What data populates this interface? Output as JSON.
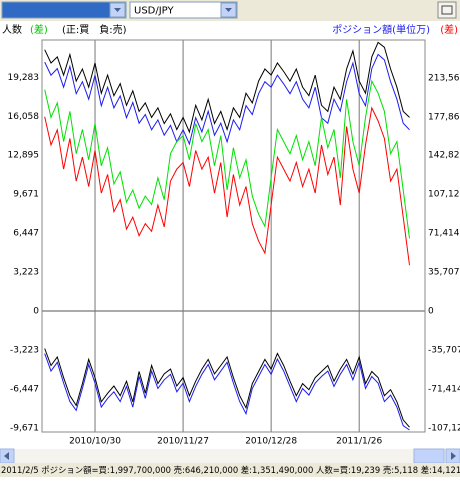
{
  "toolbar": {
    "pair": "USD/JPY"
  },
  "chart_data": {
    "type": "line",
    "left_label": {
      "people": "人数",
      "diff": "(差)",
      "sign": "(正:買　負:売)"
    },
    "right_label": {
      "amount": "ポジション額(単位万)",
      "diff": "(差)"
    },
    "categories": [
      null,
      null,
      null,
      null,
      null,
      null,
      null,
      null,
      "2010/10/30",
      null,
      null,
      null,
      null,
      null,
      null,
      null,
      null,
      null,
      null,
      null,
      null,
      null,
      "2010/11/27",
      null,
      null,
      null,
      null,
      null,
      null,
      null,
      null,
      null,
      null,
      null,
      null,
      null,
      "2010/12/28",
      null,
      null,
      null,
      null,
      null,
      null,
      null,
      null,
      null,
      null,
      null,
      null,
      null,
      "2011/1/26",
      null,
      null,
      null,
      null,
      null,
      null,
      null,
      null
    ],
    "ylim": [
      -10000,
      22400
    ],
    "yticks": [
      {
        "value": 19283,
        "label": "19,283"
      },
      {
        "value": 16058,
        "label": "16,058"
      },
      {
        "value": 12895,
        "label": "12,895"
      },
      {
        "value": 9671,
        "label": "9,671"
      },
      {
        "value": 6447,
        "label": "6,447"
      },
      {
        "value": 3223,
        "label": "3,223"
      },
      0,
      {
        "value": -3223,
        "label": "-3,223"
      },
      {
        "value": -6447,
        "label": "-6,447"
      },
      {
        "value": -9671,
        "label": "-9,671"
      }
    ],
    "y2lim": [
      -110800,
      248200
    ],
    "y2ticks": [
      {
        "value": 213569,
        "label": "213,569"
      },
      {
        "value": 177862,
        "label": "177,862"
      },
      {
        "value": 142828,
        "label": "142,828"
      },
      {
        "value": 107121,
        "label": "107,121"
      },
      {
        "value": 71414,
        "label": "71,414"
      },
      {
        "value": 35707,
        "label": "35,707"
      },
      0,
      {
        "value": -35707,
        "label": "-35,707"
      },
      {
        "value": -71414,
        "label": "-71,414"
      },
      {
        "value": -107121,
        "label": "-107,121"
      }
    ],
    "series": [
      {
        "color": "#000000",
        "axis": "y",
        "values": [
          21600,
          20500,
          21000,
          19500,
          21200,
          19000,
          20000,
          18500,
          20500,
          18000,
          19500,
          17800,
          18800,
          17000,
          18200,
          16500,
          17200,
          16000,
          16800,
          15500,
          16300,
          15000,
          16000,
          14800,
          17000,
          15800,
          17500,
          15500,
          16500,
          15000,
          16800,
          16000,
          18000,
          17200,
          19000,
          20000,
          19500,
          20500,
          19800,
          19000,
          20000,
          18500,
          17800,
          19500,
          17000,
          16500,
          18500,
          17500,
          20000,
          21500,
          19000,
          18000,
          21000,
          22200,
          21800,
          20000,
          18500,
          16500,
          16000
        ]
      },
      {
        "color": "#1c1cf0",
        "axis": "y2",
        "values": [
          228000,
          216000,
          222000,
          205000,
          224000,
          199000,
          210000,
          194000,
          216000,
          188000,
          205000,
          186000,
          197000,
          177000,
          191000,
          172000,
          180000,
          166000,
          175000,
          161000,
          170000,
          155000,
          166000,
          153000,
          177000,
          164000,
          183000,
          161000,
          172000,
          155000,
          175000,
          166000,
          188000,
          180000,
          199000,
          210000,
          205000,
          216000,
          208000,
          199000,
          210000,
          194000,
          186000,
          205000,
          177000,
          172000,
          194000,
          183000,
          210000,
          227000,
          199000,
          188000,
          222000,
          235000,
          230000,
          210000,
          194000,
          172000,
          166000
        ]
      },
      {
        "color": "#00e000",
        "axis": "y",
        "values": [
          18300,
          16000,
          17200,
          14000,
          16500,
          13000,
          15000,
          12500,
          15500,
          12000,
          13500,
          10500,
          11500,
          9000,
          10000,
          8500,
          9500,
          8800,
          11000,
          9200,
          13000,
          14000,
          14500,
          12500,
          15500,
          14000,
          15000,
          12000,
          14500,
          10000,
          13500,
          11000,
          12500,
          9500,
          8000,
          7000,
          11000,
          15000,
          14000,
          13000,
          14500,
          12500,
          14000,
          12000,
          16000,
          13500,
          15000,
          11000,
          17500,
          14000,
          12000,
          16000,
          19000,
          18000,
          16500,
          13000,
          14000,
          10000,
          6000
        ]
      },
      {
        "color": "#ff0000",
        "axis": "y2",
        "values": [
          178000,
          152000,
          166000,
          130000,
          158000,
          119000,
          141000,
          114000,
          147000,
          108000,
          125000,
          91000,
          102000,
          75000,
          86000,
          69000,
          80000,
          73000,
          97000,
          77000,
          119000,
          130000,
          136000,
          114000,
          147000,
          130000,
          141000,
          108000,
          136000,
          86000,
          125000,
          97000,
          114000,
          80000,
          64000,
          53000,
          97000,
          141000,
          130000,
          119000,
          136000,
          114000,
          130000,
          108000,
          152000,
          125000,
          141000,
          97000,
          169000,
          130000,
          108000,
          152000,
          186000,
          174000,
          158000,
          119000,
          130000,
          86000,
          42000
        ]
      },
      {
        "color": "#000000",
        "axis": "y",
        "values": [
          -3100,
          -4500,
          -3800,
          -5500,
          -7000,
          -7800,
          -6000,
          -4000,
          -5500,
          -7500,
          -6800,
          -6200,
          -7000,
          -5800,
          -7500,
          -5000,
          -6800,
          -4500,
          -6000,
          -5200,
          -4800,
          -6200,
          -5500,
          -7000,
          -5800,
          -4800,
          -4000,
          -5200,
          -4500,
          -3800,
          -5500,
          -7000,
          -8000,
          -6000,
          -5000,
          -4000,
          -4800,
          -3500,
          -4500,
          -5800,
          -7000,
          -6000,
          -6500,
          -5500,
          -5000,
          -4500,
          -5800,
          -4800,
          -4000,
          -5200,
          -3800,
          -6000,
          -5000,
          -5500,
          -7000,
          -6500,
          -7500,
          -9000,
          -9600
        ]
      },
      {
        "color": "#1c1cf0",
        "axis": "y2",
        "values": [
          -39000,
          -55000,
          -47000,
          -66000,
          -83000,
          -91000,
          -71000,
          -49000,
          -66000,
          -88000,
          -80000,
          -74000,
          -83000,
          -69000,
          -88000,
          -60000,
          -80000,
          -55000,
          -71000,
          -63000,
          -58000,
          -74000,
          -66000,
          -83000,
          -69000,
          -58000,
          -49000,
          -63000,
          -55000,
          -47000,
          -66000,
          -83000,
          -94000,
          -71000,
          -60000,
          -49000,
          -58000,
          -44000,
          -55000,
          -69000,
          -83000,
          -71000,
          -77000,
          -66000,
          -60000,
          -55000,
          -69000,
          -58000,
          -49000,
          -63000,
          -47000,
          -71000,
          -60000,
          -66000,
          -83000,
          -77000,
          -88000,
          -105000,
          -109000
        ]
      }
    ]
  },
  "status_text": "2011/2/5 ポジション額=買:1,997,700,000 売:646,210,000 差:1,351,490,000 人数=買:19,239 売:5,118 差:14,121"
}
